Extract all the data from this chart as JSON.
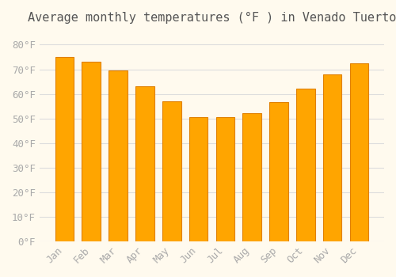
{
  "title": "Average monthly temperatures (°F ) in Venado Tuerto",
  "months": [
    "Jan",
    "Feb",
    "Mar",
    "Apr",
    "May",
    "Jun",
    "Jul",
    "Aug",
    "Sep",
    "Oct",
    "Nov",
    "Dec"
  ],
  "values": [
    75,
    73,
    69.5,
    63,
    57,
    50.5,
    50.5,
    52,
    56.5,
    62,
    68,
    72.5
  ],
  "bar_color": "#FFA500",
  "bar_edge_color": "#E08000",
  "background_color": "#FFFAEE",
  "grid_color": "#DDDDDD",
  "yticks": [
    0,
    10,
    20,
    30,
    40,
    50,
    60,
    70,
    80
  ],
  "ytick_labels": [
    "0°F",
    "10°F",
    "20°F",
    "30°F",
    "40°F",
    "50°F",
    "60°F",
    "70°F",
    "80°F"
  ],
  "ylim": [
    0,
    85
  ],
  "title_fontsize": 11,
  "tick_fontsize": 9,
  "font_color": "#AAAAAA"
}
